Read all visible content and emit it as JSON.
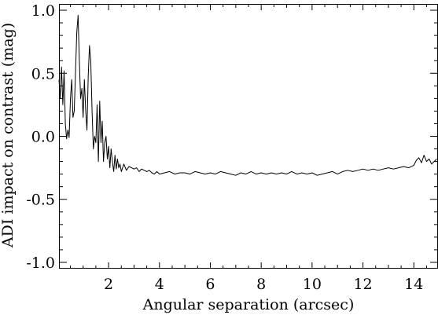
{
  "chart_data": {
    "type": "line",
    "title": "",
    "xlabel": "Angular separation (arcsec)",
    "ylabel": "ADI impact on contrast (mag)",
    "xlim": [
      0.05,
      14.95
    ],
    "ylim": [
      -1.05,
      1.05
    ],
    "xticks": [
      2,
      4,
      6,
      8,
      10,
      12,
      14
    ],
    "xtick_labels": [
      "2",
      "4",
      "6",
      "8",
      "10",
      "12",
      "14"
    ],
    "yticks": [
      1.0,
      0.5,
      0.0,
      -0.5,
      -1.0
    ],
    "ytick_labels": [
      "1.0",
      "0.5",
      "0.0",
      "-0.5",
      "-1.0"
    ],
    "grid": false,
    "line_color": "#000000",
    "series": [
      {
        "x": [
          0.05,
          0.1,
          0.15,
          0.2,
          0.25,
          0.3,
          0.35,
          0.4,
          0.45,
          0.5,
          0.55,
          0.6,
          0.65,
          0.7,
          0.75,
          0.8,
          0.85,
          0.9,
          0.95,
          1.0,
          1.05,
          1.1,
          1.15,
          1.2,
          1.25,
          1.3,
          1.35,
          1.4,
          1.45,
          1.5,
          1.55,
          1.6,
          1.65,
          1.7,
          1.75,
          1.8,
          1.85,
          1.9,
          1.95,
          2.0,
          2.05,
          2.1,
          2.15,
          2.2,
          2.25,
          2.3,
          2.35,
          2.4,
          2.45,
          2.5,
          2.6,
          2.7,
          2.8,
          2.9,
          3.0,
          3.1,
          3.2,
          3.3,
          3.4,
          3.5,
          3.6,
          3.7,
          3.8,
          3.9,
          4.0,
          4.2,
          4.4,
          4.6,
          4.8,
          5.0,
          5.2,
          5.4,
          5.6,
          5.8,
          6.0,
          6.2,
          6.4,
          6.6,
          6.8,
          7.0,
          7.2,
          7.4,
          7.6,
          7.8,
          8.0,
          8.2,
          8.4,
          8.6,
          8.8,
          9.0,
          9.2,
          9.4,
          9.6,
          9.8,
          10.0,
          10.2,
          10.4,
          10.6,
          10.8,
          11.0,
          11.2,
          11.4,
          11.6,
          11.8,
          12.0,
          12.2,
          12.4,
          12.6,
          12.8,
          13.0,
          13.2,
          13.4,
          13.6,
          13.8,
          14.0,
          14.1,
          14.2,
          14.3,
          14.4,
          14.5,
          14.6,
          14.7,
          14.8,
          14.9
        ],
        "y": [
          0.45,
          0.3,
          0.55,
          0.25,
          0.52,
          0.1,
          -0.02,
          0.05,
          -0.01,
          0.3,
          0.45,
          0.15,
          0.2,
          0.5,
          0.82,
          0.96,
          0.6,
          0.3,
          0.38,
          0.15,
          0.45,
          0.2,
          0.05,
          0.48,
          0.72,
          0.6,
          0.2,
          -0.1,
          0.0,
          -0.05,
          0.25,
          -0.2,
          0.28,
          -0.05,
          0.12,
          -0.2,
          -0.05,
          0.0,
          -0.18,
          -0.08,
          -0.25,
          -0.1,
          -0.2,
          -0.28,
          -0.15,
          -0.26,
          -0.18,
          -0.25,
          -0.22,
          -0.28,
          -0.22,
          -0.27,
          -0.24,
          -0.25,
          -0.26,
          -0.25,
          -0.28,
          -0.26,
          -0.27,
          -0.28,
          -0.27,
          -0.29,
          -0.3,
          -0.28,
          -0.3,
          -0.29,
          -0.28,
          -0.3,
          -0.29,
          -0.29,
          -0.3,
          -0.28,
          -0.29,
          -0.3,
          -0.29,
          -0.3,
          -0.28,
          -0.29,
          -0.3,
          -0.31,
          -0.29,
          -0.3,
          -0.28,
          -0.3,
          -0.29,
          -0.3,
          -0.29,
          -0.3,
          -0.29,
          -0.3,
          -0.28,
          -0.3,
          -0.29,
          -0.3,
          -0.29,
          -0.31,
          -0.3,
          -0.29,
          -0.28,
          -0.3,
          -0.28,
          -0.27,
          -0.28,
          -0.27,
          -0.26,
          -0.27,
          -0.26,
          -0.27,
          -0.26,
          -0.25,
          -0.26,
          -0.25,
          -0.24,
          -0.25,
          -0.23,
          -0.19,
          -0.17,
          -0.21,
          -0.15,
          -0.2,
          -0.18,
          -0.22,
          -0.2,
          -0.18
        ]
      }
    ]
  }
}
